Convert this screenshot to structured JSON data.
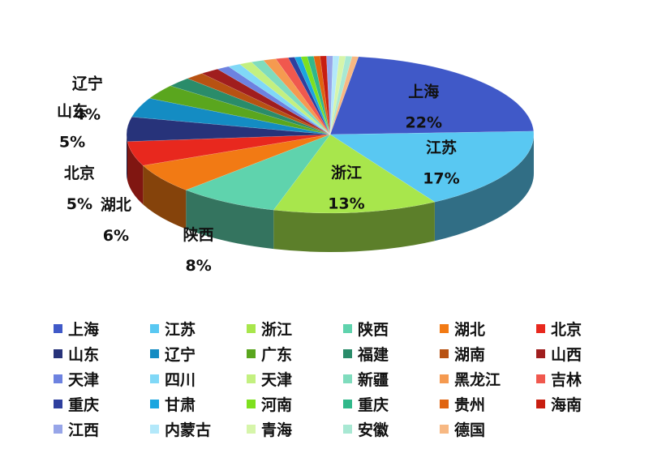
{
  "chart_data": {
    "type": "pie",
    "title": "",
    "three_d": true,
    "legend_position": "bottom",
    "labels_shown_on_slices": [
      "上海",
      "江苏",
      "浙江",
      "陕西",
      "湖北",
      "北京",
      "山东",
      "辽宁"
    ],
    "slices": [
      {
        "label": "上海",
        "value": 22,
        "value_label": "22%",
        "color": "#4059c8"
      },
      {
        "label": "江苏",
        "value": 17,
        "value_label": "17%",
        "color": "#59c8f2"
      },
      {
        "label": "浙江",
        "value": 13,
        "value_label": "13%",
        "color": "#a8e64c"
      },
      {
        "label": "陕西",
        "value": 8,
        "value_label": "8%",
        "color": "#5fd3ad"
      },
      {
        "label": "湖北",
        "value": 6,
        "value_label": "6%",
        "color": "#f27a14"
      },
      {
        "label": "北京",
        "value": 5,
        "value_label": "5%",
        "color": "#e8281e"
      },
      {
        "label": "山东",
        "value": 5,
        "value_label": "5%",
        "color": "#27337a"
      },
      {
        "label": "辽宁",
        "value": 4,
        "value_label": "4%",
        "color": "#148cc3"
      },
      {
        "label": "广东",
        "value": 3,
        "value_label": "",
        "color": "#5aa61e"
      },
      {
        "label": "福建",
        "value": 2,
        "value_label": "",
        "color": "#2a8c6a"
      },
      {
        "label": "湖南",
        "value": 1.5,
        "value_label": "",
        "color": "#b85212"
      },
      {
        "label": "山西",
        "value": 1.5,
        "value_label": "",
        "color": "#a01e1e"
      },
      {
        "label": "天津",
        "value": 1,
        "value_label": "",
        "color": "#6d82e0"
      },
      {
        "label": "四川",
        "value": 1,
        "value_label": "",
        "color": "#80d8f7"
      },
      {
        "label": "天津",
        "value": 1,
        "value_label": "",
        "color": "#c3f080"
      },
      {
        "label": "新疆",
        "value": 1,
        "value_label": "",
        "color": "#7fdcbd"
      },
      {
        "label": "黑龙江",
        "value": 1,
        "value_label": "",
        "color": "#f59a50"
      },
      {
        "label": "吉林",
        "value": 1,
        "value_label": "",
        "color": "#f0584e"
      },
      {
        "label": "重庆",
        "value": 0.5,
        "value_label": "",
        "color": "#2e3f9e"
      },
      {
        "label": "甘肃",
        "value": 0.5,
        "value_label": "",
        "color": "#1aa6e0"
      },
      {
        "label": "河南",
        "value": 0.5,
        "value_label": "",
        "color": "#7ee01e"
      },
      {
        "label": "重庆",
        "value": 0.5,
        "value_label": "",
        "color": "#30b88a"
      },
      {
        "label": "贵州",
        "value": 0.5,
        "value_label": "",
        "color": "#e06410"
      },
      {
        "label": "海南",
        "value": 0.5,
        "value_label": "",
        "color": "#c81e10"
      },
      {
        "label": "江西",
        "value": 0.5,
        "value_label": "",
        "color": "#97a5e8"
      },
      {
        "label": "内蒙古",
        "value": 0.5,
        "value_label": "",
        "color": "#b3e8fa"
      },
      {
        "label": "青海",
        "value": 0.5,
        "value_label": "",
        "color": "#d6f5aa"
      },
      {
        "label": "安徽",
        "value": 0.5,
        "value_label": "",
        "color": "#a8e8d3"
      },
      {
        "label": "德国",
        "value": 0.5,
        "value_label": "",
        "color": "#f7b883"
      }
    ]
  }
}
